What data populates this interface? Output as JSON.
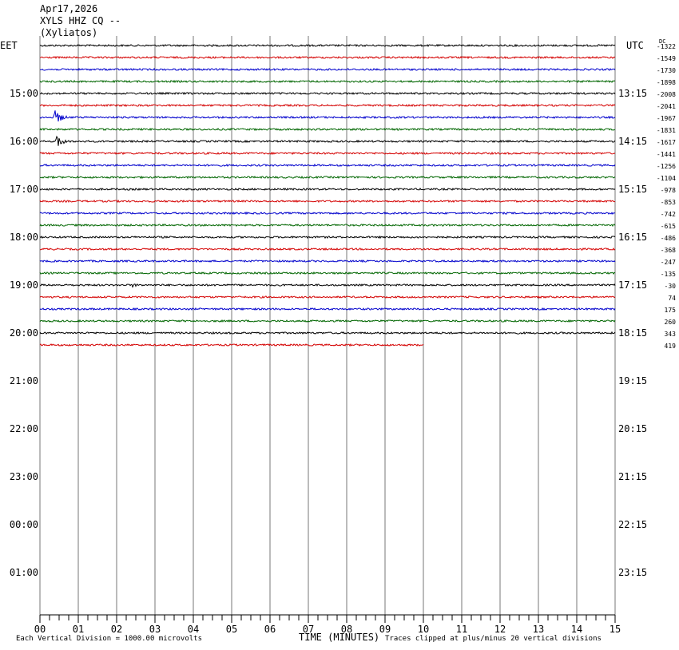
{
  "header": {
    "date": "Apr17,2026",
    "station": "XYLS HHZ CQ --",
    "location": "(Xyliatos)"
  },
  "left_timezone": "EET",
  "right_timezone": "UTC",
  "dc_label": "DC",
  "footer": {
    "scale_note": "Each Vertical Division = 1000.00 microvolts",
    "xlabel": "TIME (MINUTES)",
    "clip_note": "Traces clipped at plus/minus 20 vertical divisions"
  },
  "chart_data": {
    "type": "line",
    "title": "",
    "xlabel": "TIME (MINUTES)",
    "xlim": [
      0,
      15
    ],
    "x_ticks": [
      "00",
      "01",
      "02",
      "03",
      "04",
      "05",
      "06",
      "07",
      "08",
      "09",
      "10",
      "11",
      "12",
      "13",
      "14",
      "15"
    ],
    "left_hour_labels": [
      "15:00",
      "16:00",
      "17:00",
      "18:00",
      "19:00",
      "20:00",
      "21:00",
      "22:00",
      "23:00",
      "00:00",
      "01:00"
    ],
    "right_hour_labels": [
      "13:15",
      "14:15",
      "15:15",
      "16:15",
      "17:15",
      "18:15",
      "19:15",
      "20:15",
      "21:15",
      "22:15",
      "23:15"
    ],
    "trace_colors": [
      "#000000",
      "#d40000",
      "#0000cc",
      "#006600"
    ],
    "traces": [
      {
        "offset": "-1322",
        "end_minute": 15
      },
      {
        "offset": "-1549",
        "end_minute": 15
      },
      {
        "offset": "-1730",
        "end_minute": 15
      },
      {
        "offset": "-1898",
        "end_minute": 15
      },
      {
        "offset": "-2008",
        "end_minute": 15
      },
      {
        "offset": "-2041",
        "end_minute": 15
      },
      {
        "offset": "-1967",
        "end_minute": 15,
        "event_minute": 0.4,
        "event_amplitude": 10
      },
      {
        "offset": "-1831",
        "end_minute": 15
      },
      {
        "offset": "-1617",
        "end_minute": 15,
        "event_minute": 0.45,
        "event_amplitude": 9
      },
      {
        "offset": "-1441",
        "end_minute": 15
      },
      {
        "offset": "-1256",
        "end_minute": 15
      },
      {
        "offset": "-1104",
        "end_minute": 15
      },
      {
        "offset": "-978",
        "end_minute": 15
      },
      {
        "offset": "-853",
        "end_minute": 15
      },
      {
        "offset": "-742",
        "end_minute": 15
      },
      {
        "offset": "-615",
        "end_minute": 15
      },
      {
        "offset": "-486",
        "end_minute": 15
      },
      {
        "offset": "-368",
        "end_minute": 15
      },
      {
        "offset": "-247",
        "end_minute": 15
      },
      {
        "offset": "-135",
        "end_minute": 15
      },
      {
        "offset": "-30",
        "end_minute": 15,
        "event_minute": 2.4,
        "event_amplitude": 3
      },
      {
        "offset": "74",
        "end_minute": 15
      },
      {
        "offset": "175",
        "end_minute": 15
      },
      {
        "offset": "260",
        "end_minute": 15
      },
      {
        "offset": "343",
        "end_minute": 15
      },
      {
        "offset": "419",
        "end_minute": 10
      }
    ]
  }
}
